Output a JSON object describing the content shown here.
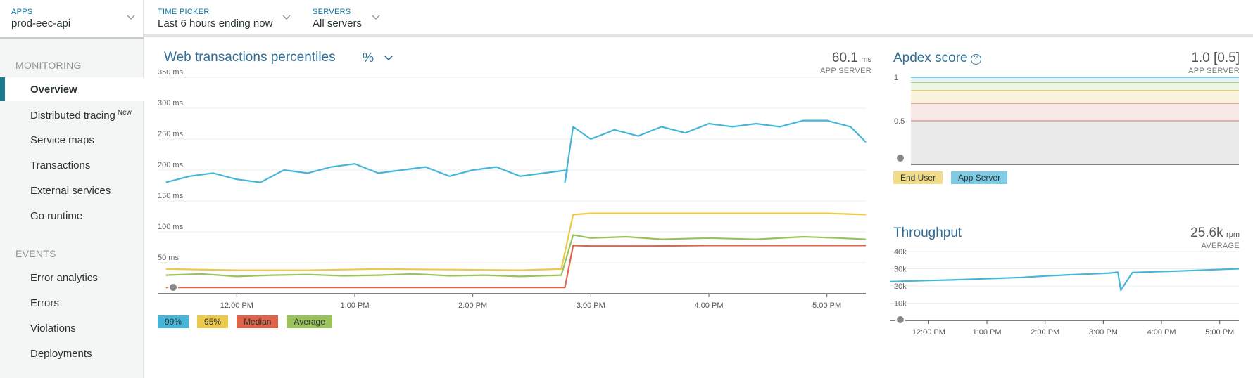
{
  "topbar": {
    "apps": {
      "label": "APPS",
      "value": "prod-eec-api"
    },
    "time_picker": {
      "label": "TIME PICKER",
      "value": "Last 6 hours ending now"
    },
    "servers": {
      "label": "SERVERS",
      "value": "All servers"
    }
  },
  "sidebar": {
    "monitoring_title": "MONITORING",
    "monitoring_items": [
      {
        "label": "Overview",
        "active": true
      },
      {
        "label": "Distributed tracing",
        "badge": "New"
      },
      {
        "label": "Service maps"
      },
      {
        "label": "Transactions"
      },
      {
        "label": "External services"
      },
      {
        "label": "Go runtime"
      }
    ],
    "events_title": "EVENTS",
    "events_items": [
      {
        "label": "Error analytics"
      },
      {
        "label": "Errors"
      },
      {
        "label": "Violations"
      },
      {
        "label": "Deployments"
      }
    ]
  },
  "web_panel": {
    "title": "Web transactions percentiles",
    "mode": "%",
    "metric_value": "60.1",
    "metric_unit": "ms",
    "metric_sub": "APP SERVER",
    "legend": [
      {
        "label": "99%",
        "color": "#45b6d9"
      },
      {
        "label": "95%",
        "color": "#ecc94b"
      },
      {
        "label": "Median",
        "color": "#e0644a"
      },
      {
        "label": "Average",
        "color": "#99c35a"
      }
    ]
  },
  "apdex_panel": {
    "title": "Apdex score",
    "help": "?",
    "metric_value": "1.0 [0.5]",
    "metric_sub": "APP SERVER",
    "legend": [
      {
        "label": "End User",
        "color": "#f0dc8a"
      },
      {
        "label": "App Server",
        "color": "#7fcbe3"
      }
    ]
  },
  "throughput_panel": {
    "title": "Throughput",
    "metric_value": "25.6k",
    "metric_unit": "rpm",
    "metric_sub": "AVERAGE"
  },
  "chart_data": [
    {
      "type": "line",
      "id": "web",
      "y_ticks": [
        "50 ms",
        "100 ms",
        "150 ms",
        "200 ms",
        "250 ms",
        "300 ms",
        "350 ms"
      ],
      "y_tick_values": [
        50,
        100,
        150,
        200,
        250,
        300,
        350
      ],
      "ylim": [
        0,
        350
      ],
      "x_ticks": [
        "12:00 PM",
        "1:00 PM",
        "2:00 PM",
        "3:00 PM",
        "4:00 PM",
        "5:00 PM"
      ],
      "x_tick_hours": [
        12,
        13,
        14,
        15,
        16,
        17
      ],
      "xlim_hours": [
        11.33,
        17.33
      ],
      "grid": true,
      "series": [
        {
          "name": "99%",
          "color": "#45b6d9",
          "x": [
            11.4,
            11.6,
            11.8,
            12.0,
            12.2,
            12.4,
            12.6,
            12.8,
            13.0,
            13.2,
            13.4,
            13.6,
            13.8,
            14.0,
            14.2,
            14.4,
            14.6,
            14.8,
            14.78,
            14.85,
            15.0,
            15.2,
            15.4,
            15.6,
            15.8,
            16.0,
            16.2,
            16.4,
            16.6,
            16.8,
            17.0,
            17.2,
            17.33
          ],
          "values": [
            180,
            190,
            195,
            185,
            180,
            200,
            195,
            205,
            210,
            195,
            200,
            205,
            190,
            200,
            205,
            190,
            195,
            200,
            180,
            270,
            250,
            265,
            255,
            270,
            260,
            275,
            270,
            275,
            270,
            280,
            280,
            270,
            245
          ]
        },
        {
          "name": "95%",
          "color": "#ecc94b",
          "x": [
            11.4,
            12.0,
            12.6,
            13.2,
            13.8,
            14.4,
            14.75,
            14.85,
            15.0,
            15.5,
            16.0,
            16.5,
            17.0,
            17.33
          ],
          "values": [
            40,
            38,
            38,
            40,
            39,
            38,
            40,
            128,
            130,
            130,
            130,
            130,
            130,
            128
          ]
        },
        {
          "name": "Median",
          "color": "#e0644a",
          "x": [
            11.4,
            12.0,
            12.6,
            13.2,
            13.8,
            14.4,
            14.78,
            14.85,
            15.0,
            15.5,
            16.0,
            16.5,
            17.0,
            17.33
          ],
          "values": [
            10,
            10,
            10,
            10,
            10,
            10,
            10,
            78,
            77,
            77,
            78,
            78,
            78,
            78
          ]
        },
        {
          "name": "Average",
          "color": "#99c35a",
          "x": [
            11.4,
            11.7,
            12.0,
            12.3,
            12.6,
            12.9,
            13.2,
            13.5,
            13.8,
            14.1,
            14.4,
            14.75,
            14.85,
            15.0,
            15.3,
            15.6,
            16.0,
            16.4,
            16.8,
            17.1,
            17.33
          ],
          "values": [
            30,
            32,
            28,
            30,
            31,
            29,
            30,
            32,
            29,
            30,
            28,
            30,
            95,
            90,
            92,
            88,
            90,
            88,
            92,
            90,
            88
          ]
        }
      ]
    },
    {
      "type": "area",
      "id": "apdex",
      "y_ticks": [
        "0.5",
        "1"
      ],
      "y_tick_values": [
        0.5,
        1
      ],
      "ylim": [
        0,
        1
      ],
      "thresholds": [
        0.94,
        0.85,
        0.7
      ],
      "series": [
        {
          "name": "End User",
          "color": "#f0dc8a",
          "values": []
        },
        {
          "name": "App Server",
          "color": "#7fcbe3",
          "values": [
            1,
            1,
            1,
            1,
            1,
            1,
            1,
            1,
            1,
            1,
            1,
            1
          ]
        }
      ]
    },
    {
      "type": "line",
      "id": "throughput",
      "y_ticks": [
        "10k",
        "20k",
        "30k",
        "40k"
      ],
      "y_tick_values": [
        10000,
        20000,
        30000,
        40000
      ],
      "ylim": [
        0,
        40000
      ],
      "x_ticks": [
        "12:00 PM",
        "1:00 PM",
        "2:00 PM",
        "3:00 PM",
        "4:00 PM",
        "5:00 PM"
      ],
      "x_tick_hours": [
        12,
        13,
        14,
        15,
        16,
        17
      ],
      "xlim_hours": [
        11.33,
        17.33
      ],
      "series": [
        {
          "name": "Throughput",
          "color": "#45b6d9",
          "x": [
            11.33,
            11.6,
            12.0,
            12.4,
            12.8,
            13.2,
            13.6,
            14.0,
            14.4,
            14.8,
            15.1,
            15.25,
            15.3,
            15.5,
            15.9,
            16.3,
            16.7,
            17.1,
            17.33
          ],
          "values": [
            22500,
            22800,
            23200,
            23500,
            24000,
            24500,
            25000,
            25800,
            26500,
            27000,
            27500,
            28000,
            17500,
            27800,
            28300,
            28700,
            29200,
            29700,
            30000
          ]
        }
      ]
    }
  ]
}
